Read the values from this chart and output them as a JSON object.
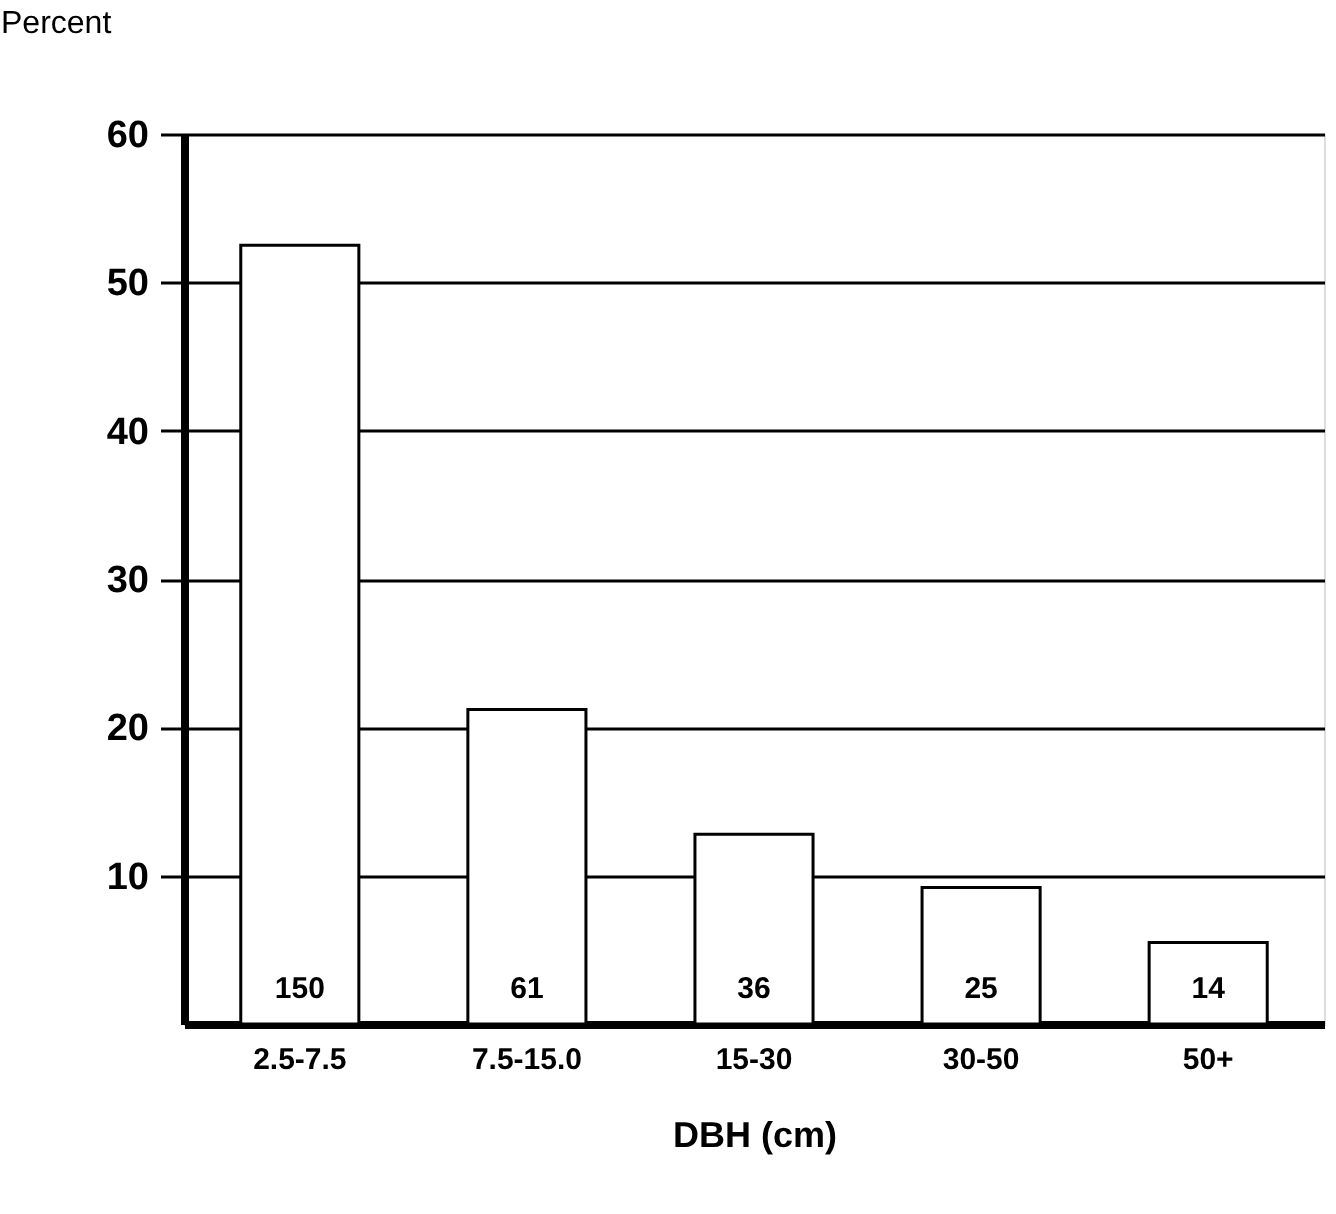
{
  "chart_data": {
    "type": "bar",
    "ylabel": "Percent",
    "xlabel": "DBH (cm)",
    "categories": [
      "2.5-7.5",
      "7.5-15.0",
      "15-30",
      "30-50",
      "50+"
    ],
    "values": [
      52.5,
      21.2,
      12.8,
      9.2,
      5.5
    ],
    "annotations": [
      "150",
      "61",
      "36",
      "25",
      "14"
    ],
    "color": "#ffffff",
    "ylim": [
      0,
      60
    ],
    "yticks": [
      10,
      20,
      30,
      40,
      50,
      60
    ],
    "grid": "y"
  }
}
